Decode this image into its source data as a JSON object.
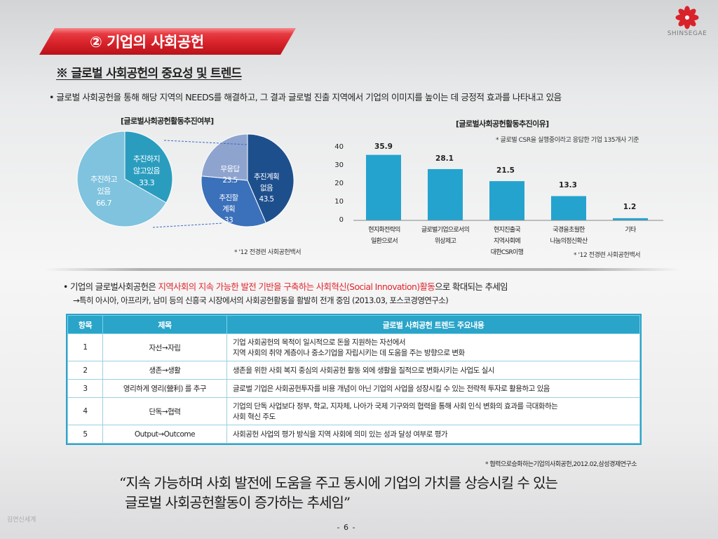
{
  "header": {
    "title": "② 기업의 사회공헌",
    "logo_text": "SHINSEGAE",
    "logo_icon": "flower-logo-icon",
    "accent_color": "#d9232b"
  },
  "subheading": "※ 글로벌 사회공헌의 중요성 및 트렌드",
  "bullet1": "• 글로벌 사회공헌을 통해 해당 지역의 NEEDS를 해결하고, 그 결과 글로벌 진출 지역에서 기업의 이미지를 높이는 데 긍정적 효과를 나타내고 있음",
  "chart_data": [
    {
      "type": "pie",
      "title": "[글로벌사회공헌활동추진여부]",
      "slices": [
        {
          "label": "추진하고 있음",
          "value": 66.7,
          "color": "#7fc3de"
        },
        {
          "label": "추진하지 않고있음",
          "value": 33.3,
          "color": "#2a9dbf"
        }
      ],
      "label_lines": {
        "yes": [
          "추진하고",
          "있음",
          "66.7"
        ],
        "no": [
          "추진하지",
          "않고있음",
          "33.3"
        ]
      }
    },
    {
      "type": "pie",
      "title": "",
      "slices": [
        {
          "label": "추진계획 없음",
          "value": 43.5,
          "color": "#1e4f8d"
        },
        {
          "label": "추진할 계획",
          "value": 33,
          "color": "#3b70ba"
        },
        {
          "label": "무응답",
          "value": 23.5,
          "color": "#8ea4cf"
        }
      ],
      "label_lines": {
        "none": [
          "추진계획",
          "없음",
          "43.5"
        ],
        "plan": [
          "추진할",
          "계획",
          "33"
        ],
        "noresp": [
          "무응답",
          "23.5"
        ]
      }
    },
    {
      "type": "bar",
      "title": "[글로벌사회공헌활동추진이유]",
      "categories": [
        [
          "현지화전략의",
          "일환으로서"
        ],
        [
          "글로벌기업으로서의",
          "위상제고"
        ],
        [
          "현지진출국",
          "지역사회에",
          "대한CSR이행"
        ],
        [
          "국경을초월한",
          "나눔의정신확산"
        ],
        [
          "기타"
        ]
      ],
      "values": [
        35.9,
        28.1,
        21.5,
        13.3,
        1.2
      ],
      "value_labels": [
        "35.9",
        "28.1",
        "21.5",
        "13.3",
        "1.2"
      ],
      "ylim": [
        0,
        40
      ],
      "y_ticks": [
        "0",
        "10",
        "20",
        "30",
        "40"
      ],
      "bar_color": "#25a3cf",
      "grid": false
    }
  ],
  "notes": {
    "pie_source": "* '12 전경련 사회공헌백서",
    "bar_basis": "* 글로벌 CSR을 실행중이라고 응답한 기업 135개사 기준",
    "bar_source": "* '12 전경련 사회공헌백서"
  },
  "bullet2": {
    "prefix": "• 기업의 글로벌사회공헌은 ",
    "highlight": "지역사회의 지속 가능한 발전 기반을 구축하는 사회혁신(Social Innovation)활동",
    "suffix": "으로 확대되는 추세임",
    "sub": "→특히 아시아, 아프리카, 남미 등의 신흥국 시장에서의 사회공헌활동을 활발히 전개 중임 (2013.03, 포스코경영연구소)"
  },
  "table": {
    "headers": [
      "항목",
      "제목",
      "글로벌 사회공헌 트렌드 주요내용"
    ],
    "rows": [
      {
        "no": "1",
        "title": "자선→자립",
        "content_lines": [
          "기업 사회공헌의 목적이 일시적으로 돈을 지원하는 자선에서",
          "지역 사회의 취약 계층이나 중소기업을 자립시키는 데 도움을 주는 방향으로 변화"
        ]
      },
      {
        "no": "2",
        "title": "생존→생활",
        "content_lines": [
          "생존을 위한 사회 복지 중심의 사회공헌 활동 외에 생활을 질적으로 변화시키는 사업도 실시"
        ]
      },
      {
        "no": "3",
        "title": "영리하게 영리(營利) 를 추구",
        "content_lines": [
          "글로벌 기업은 사회공헌투자를 비용 개념이 아닌 기업의 사업을 성장시킬 수 있는 전략적 투자로 활용하고 있음"
        ]
      },
      {
        "no": "4",
        "title": "단독→협력",
        "content_lines": [
          "기업의 단독 사업보다 정부, 학교, 지자체, 나아가 국제 기구와의 협력을 통해 사회 인식 변화의 효과를 극대화하는",
          "사회 혁신 주도"
        ]
      },
      {
        "no": "5",
        "title": "Output→Outcome",
        "content_lines": [
          "사회공헌 사업의 평가 방식을  지역 사회에 의미 있는 성과 달성 여부로 평가"
        ]
      }
    ],
    "header_color": "#2aa4c9"
  },
  "table_note": "* 협력으로승화하는기업의사회공헌,2012.02,삼성경제연구소",
  "quote": {
    "line1": "“지속 가능하며 사회 발전에 도움을 주고 동시에 기업의 가치를 상승시킬 수 있는",
    "line2": "글로벌 사회공헌활동이 증가하는 추세임”"
  },
  "footer": {
    "left": "김연신세계",
    "page": "- 6 -"
  }
}
